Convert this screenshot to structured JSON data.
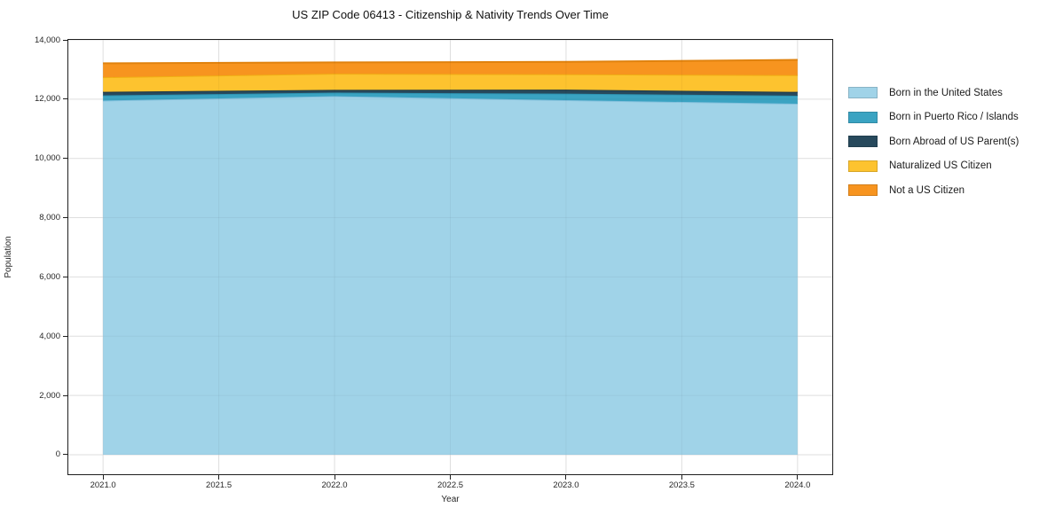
{
  "chart_data": {
    "type": "area",
    "stacked": true,
    "title": "US ZIP Code 06413 - Citizenship & Nativity Trends Over Time",
    "xlabel": "Year",
    "ylabel": "Population",
    "x": [
      2021,
      2022,
      2023,
      2024
    ],
    "series": [
      {
        "name": "Born in the United States",
        "color": "#a0d3e8",
        "edge": "#85c1dd",
        "values": [
          11950,
          12100,
          11965,
          11845
        ]
      },
      {
        "name": "Born in Puerto Rico / Islands",
        "color": "#3aa3c2",
        "edge": "#2d93b2",
        "values": [
          175,
          120,
          220,
          270
        ]
      },
      {
        "name": "Born Abroad of US Parent(s)",
        "color": "#27495c",
        "edge": "#1a3747",
        "values": [
          120,
          95,
          135,
          130
        ]
      },
      {
        "name": "Naturalized US Citizen",
        "color": "#fdc32f",
        "edge": "#f0ae14",
        "values": [
          495,
          545,
          520,
          565
        ]
      },
      {
        "name": "Not a US Citizen",
        "color": "#f7941f",
        "edge": "#e0820e",
        "values": [
          470,
          380,
          420,
          515
        ]
      }
    ],
    "totals": [
      13210,
      13240,
      13260,
      13325
    ],
    "xticks": [
      2021.0,
      2021.5,
      2022.0,
      2022.5,
      2023.0,
      2023.5,
      2024.0
    ],
    "xtick_labels": [
      "2021.0",
      "2021.5",
      "2022.0",
      "2022.5",
      "2023.0",
      "2023.5",
      "2024.0"
    ],
    "yticks": [
      0,
      2000,
      4000,
      6000,
      8000,
      10000,
      12000,
      14000
    ],
    "ytick_labels": [
      "0",
      "2,000",
      "4,000",
      "6,000",
      "8,000",
      "10,000",
      "12,000",
      "14,000"
    ],
    "xlim": [
      2020.85,
      2024.15
    ],
    "ylim": [
      -660,
      14000
    ],
    "grid": true,
    "grid_color": "#e9e9e9",
    "legend_position": "right-outside",
    "spine_color": "#1f1f1f",
    "text_color": "#262626"
  }
}
